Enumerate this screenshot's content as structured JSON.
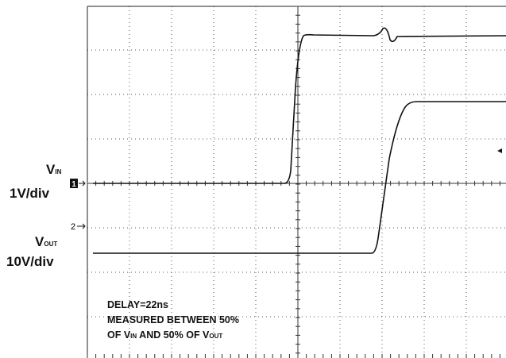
{
  "channels": [
    {
      "marker": "1",
      "symbol": "V",
      "subscript": "IN",
      "scale": "1V/div"
    },
    {
      "marker": "2",
      "symbol": "V",
      "subscript": "OUT",
      "scale": "10V/div"
    }
  ],
  "annotation": {
    "line1": "DELAY=22ns",
    "line2": "MEASURED BETWEEN 50%",
    "line3": {
      "a": "OF V",
      "a_sub": "IN",
      "b": " AND 50% OF V",
      "b_sub": "OUT"
    }
  }
}
